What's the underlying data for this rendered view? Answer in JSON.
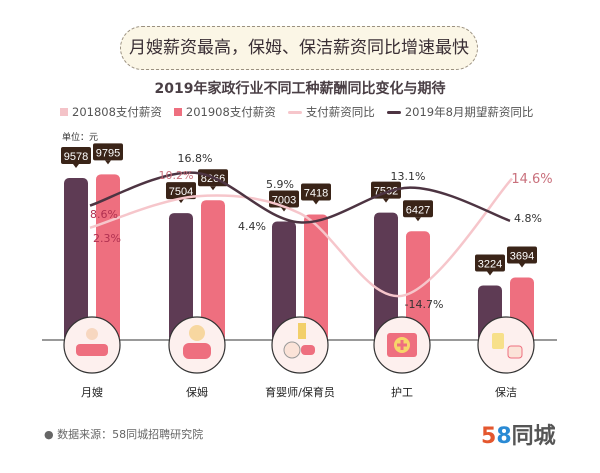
{
  "banner": "月嫂薪资最高，保姆、保洁薪资同比增速最快",
  "chart_data": {
    "type": "bar",
    "title": "2019年家政行业不同工种薪酬同比变化与期待",
    "unit_label": "单位：元",
    "categories": [
      "月嫂",
      "保姆",
      "育婴师/保育员",
      "护工",
      "保洁"
    ],
    "legend_position": "top",
    "series": [
      {
        "name": "201808支付薪资",
        "type": "bar",
        "color": "#5e3b54",
        "legend_color": "#f4c3c8",
        "values": [
          9578,
          7504,
          7003,
          7532,
          3224
        ]
      },
      {
        "name": "201908支付薪资",
        "type": "bar",
        "color": "#ee6f7f",
        "values": [
          9795,
          8266,
          7418,
          6427,
          3694
        ]
      },
      {
        "name": "支付薪资同比",
        "type": "line",
        "color": "#f6c6cb",
        "label_color": "#c9707c",
        "unit": "%",
        "values": [
          2.3,
          10.2,
          5.9,
          -14.7,
          14.6
        ]
      },
      {
        "name": "2019年8月期望薪资同比",
        "type": "line",
        "color": "#4d3442",
        "unit": "%",
        "values": [
          8.6,
          16.8,
          4.4,
          13.1,
          4.8
        ]
      }
    ],
    "grid": false
  },
  "source": "数据来源：58同城招聘研究院",
  "logo": {
    "num5": "5",
    "num8": "8",
    "text": "同城"
  },
  "icons": [
    "bathtub-baby-icon",
    "nanny-icon",
    "baby-crawling-icon",
    "first-aid-kit-icon",
    "cleaning-hands-icon"
  ]
}
